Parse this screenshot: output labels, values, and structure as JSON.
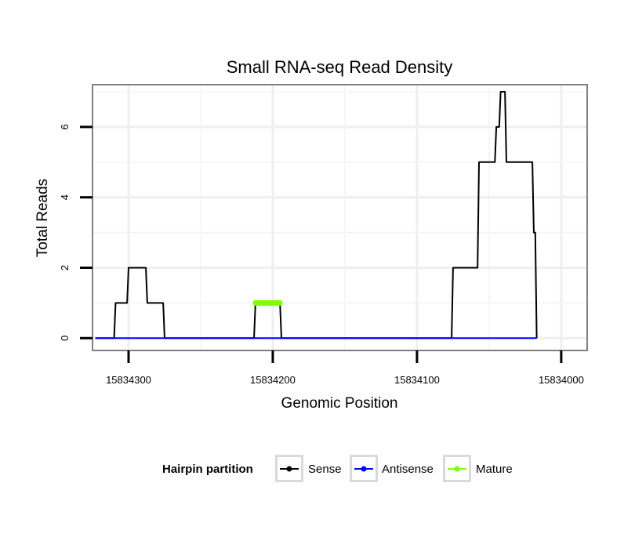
{
  "chart_data": {
    "type": "line",
    "title": "Small RNA-seq Read Density",
    "xlabel": "Genomic Position",
    "ylabel": "Total Reads",
    "x_reversed": true,
    "xlim": [
      15834325,
      15833982
    ],
    "ylim": [
      -0.35,
      7.2
    ],
    "x_ticks": [
      15834300,
      15834200,
      15834100,
      15834000
    ],
    "x_tick_labels": [
      "15834300",
      "15834200",
      "15834100",
      "15834000"
    ],
    "y_ticks": [
      0,
      2,
      4,
      6
    ],
    "y_tick_labels": [
      "0",
      "2",
      "4",
      "6"
    ],
    "x_minor_gridlines": [
      15834250,
      15834150,
      15834050
    ],
    "y_minor_gridlines": [
      1,
      3,
      5,
      7
    ],
    "grid": true,
    "legend": {
      "title": "Hairpin partition",
      "position": "bottom",
      "entries": [
        {
          "name": "Sense",
          "color": "#000000"
        },
        {
          "name": "Antisense",
          "color": "#0000ff"
        },
        {
          "name": "Mature",
          "color": "#7fff00"
        }
      ]
    },
    "series": [
      {
        "name": "Sense",
        "color": "#000000",
        "x": [
          15834323,
          15834310,
          15834309,
          15834301,
          15834300,
          15834288,
          15834287,
          15834276,
          15834275,
          15834213,
          15834212,
          15834195,
          15834194,
          15834076,
          15834075,
          15834058,
          15834057,
          15834046,
          15834045,
          15834043,
          15834042,
          15834039,
          15834038,
          15834036,
          15834035,
          15834020,
          15834019,
          15834018,
          15834017
        ],
        "y": [
          0,
          0,
          1,
          1,
          2,
          2,
          1,
          1,
          0,
          0,
          1,
          1,
          0,
          0,
          2,
          2,
          5,
          5,
          6,
          6,
          7,
          7,
          5,
          5,
          5,
          5,
          3,
          3,
          0
        ]
      },
      {
        "name": "Antisense",
        "color": "#0000ff",
        "x": [
          15834323,
          15834017
        ],
        "y": [
          0,
          0
        ]
      },
      {
        "name": "Mature",
        "color": "#7fff00",
        "x": [
          15834212,
          15834195
        ],
        "y": [
          1,
          1
        ]
      }
    ]
  }
}
